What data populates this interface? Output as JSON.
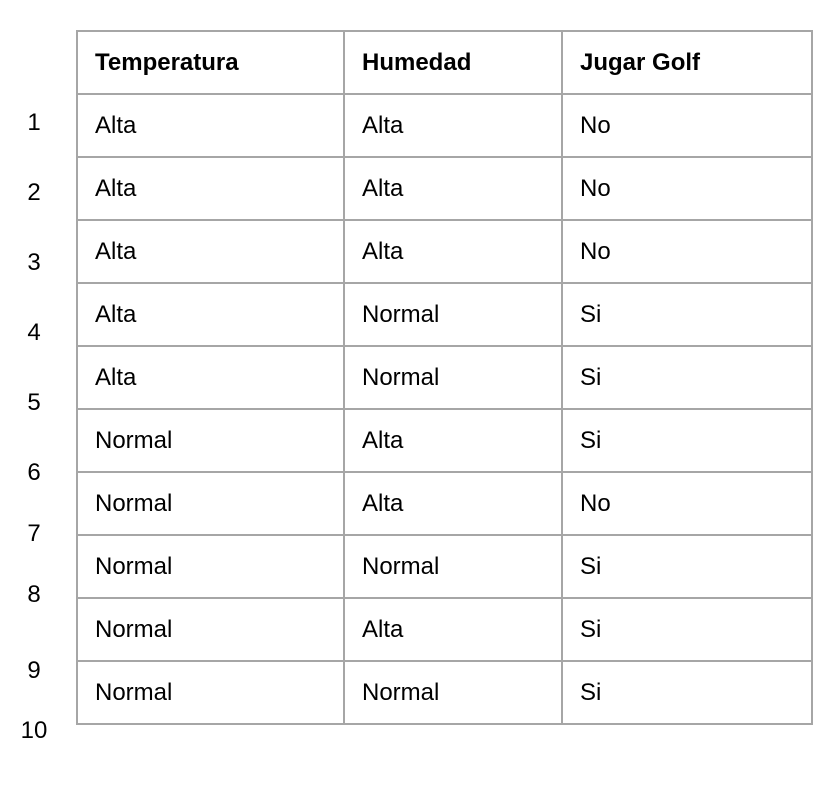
{
  "table": {
    "headers": [
      "Temperatura",
      "Humedad",
      "Jugar Golf"
    ],
    "rows": [
      {
        "index": "1",
        "cells": [
          "Alta",
          "Alta",
          "No"
        ]
      },
      {
        "index": "2",
        "cells": [
          "Alta",
          "Alta",
          "No"
        ]
      },
      {
        "index": "3",
        "cells": [
          "Alta",
          "Alta",
          "No"
        ]
      },
      {
        "index": "4",
        "cells": [
          "Alta",
          "Normal",
          "Si"
        ]
      },
      {
        "index": "5",
        "cells": [
          "Alta",
          "Normal",
          "Si"
        ]
      },
      {
        "index": "6",
        "cells": [
          "Normal",
          "Alta",
          "Si"
        ]
      },
      {
        "index": "7",
        "cells": [
          "Normal",
          "Alta",
          "No"
        ]
      },
      {
        "index": "8",
        "cells": [
          "Normal",
          "Normal",
          "Si"
        ]
      },
      {
        "index": "9",
        "cells": [
          "Normal",
          "Alta",
          "Si"
        ]
      },
      {
        "index": "10",
        "cells": [
          "Normal",
          "Normal",
          "Si"
        ]
      }
    ]
  },
  "colors": {
    "border": "#a6a6a6",
    "text": "#000000",
    "background": "#ffffff"
  }
}
